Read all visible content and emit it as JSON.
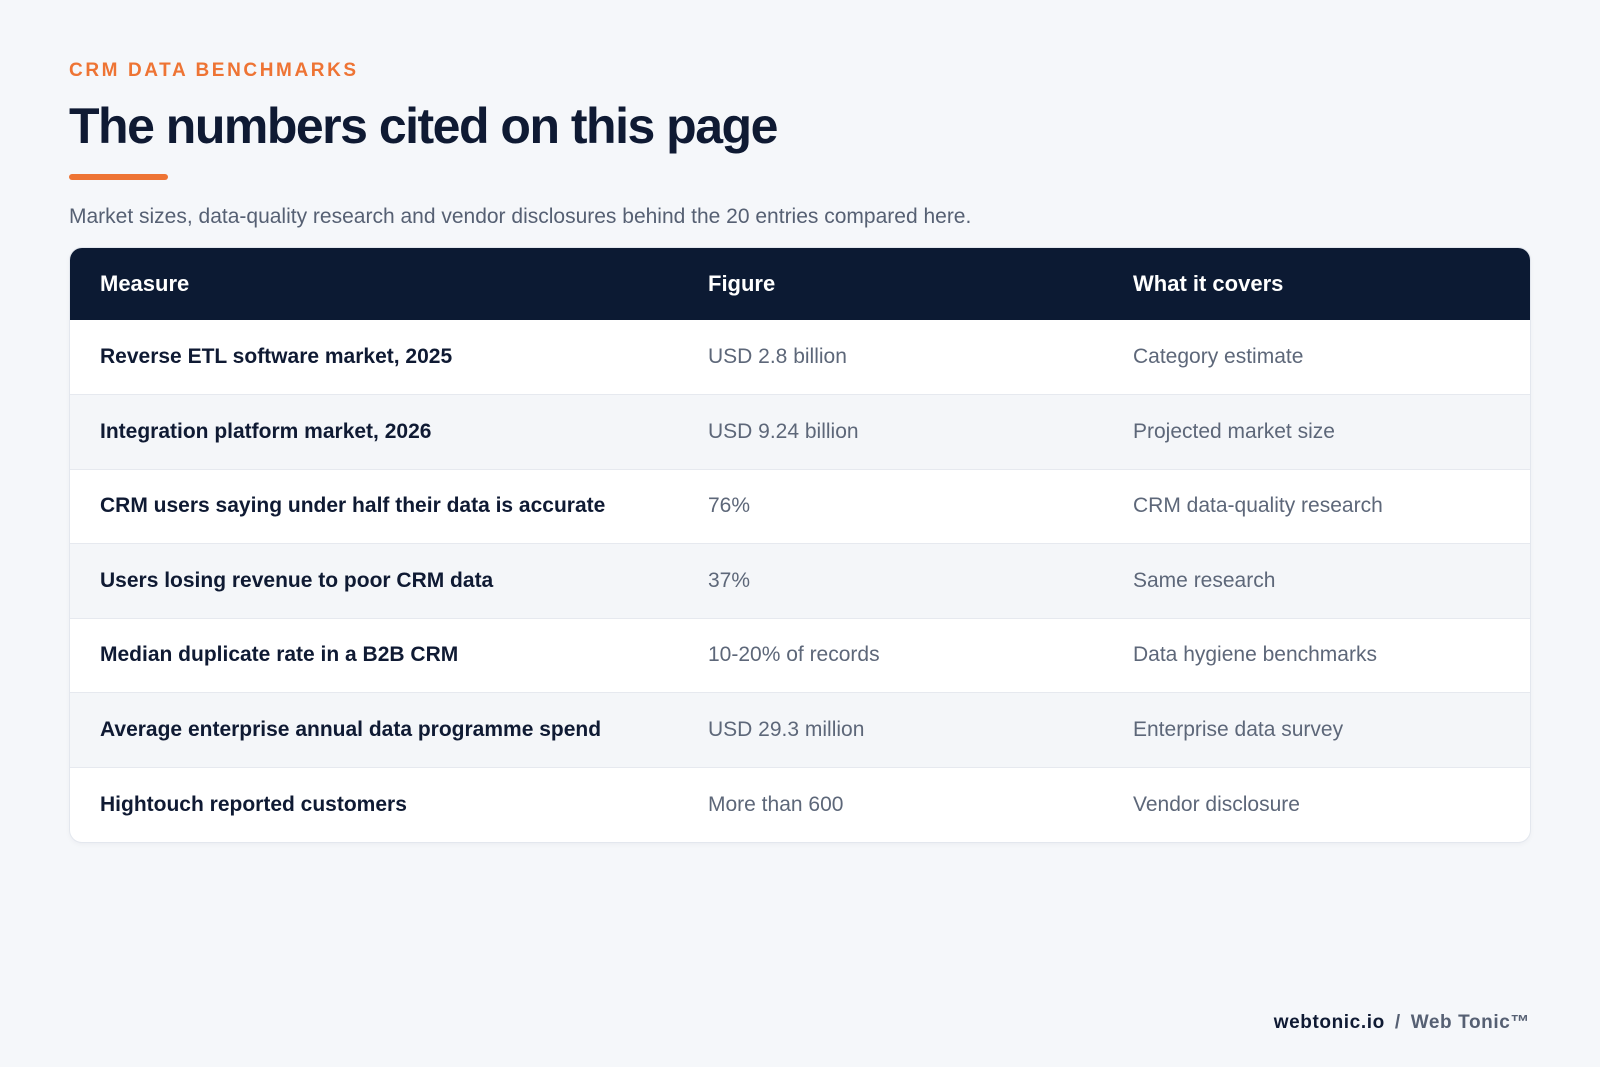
{
  "header": {
    "eyebrow": "CRM DATA BENCHMARKS",
    "title": "The numbers cited on this page",
    "subtitle": "Market sizes, data-quality research and vendor disclosures behind the 20 entries compared here."
  },
  "table": {
    "columns": [
      "Measure",
      "Figure",
      "What it covers"
    ],
    "rows": [
      [
        "Reverse ETL software market, 2025",
        "USD 2.8 billion",
        "Category estimate"
      ],
      [
        "Integration platform market, 2026",
        "USD 9.24 billion",
        "Projected market size"
      ],
      [
        "CRM users saying under half their data is accurate",
        "76%",
        "CRM data-quality research"
      ],
      [
        "Users losing revenue to poor CRM data",
        "37%",
        "Same research"
      ],
      [
        "Median duplicate rate in a B2B CRM",
        "10-20% of records",
        "Data hygiene benchmarks"
      ],
      [
        "Average enterprise annual data programme spend",
        "USD 29.3 million",
        "Enterprise data survey"
      ],
      [
        "Hightouch reported customers",
        "More than 600",
        "Vendor disclosure"
      ]
    ]
  },
  "footer": {
    "domain": "webtonic.io",
    "separator": "/",
    "brand": "Web Tonic™"
  },
  "colors": {
    "accent": "#ee7434",
    "navy": "#0c1a33",
    "background": "#f5f7fa"
  }
}
